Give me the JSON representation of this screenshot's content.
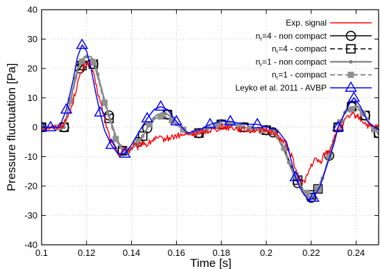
{
  "chart_data": {
    "type": "line",
    "xlabel": "Time [s]",
    "ylabel": "Pressure fluctuation [Pa]",
    "xlim": [
      0.1,
      0.25
    ],
    "ylim": [
      -40,
      40
    ],
    "xticks": [
      0.1,
      0.12,
      0.14,
      0.16,
      0.18,
      0.2,
      0.22,
      0.24
    ],
    "xtick_labels": [
      "0.1",
      "0.12",
      "0.14",
      "0.16",
      "0.18",
      "0.2",
      "0.22",
      "0.24"
    ],
    "yticks": [
      -40,
      -30,
      -20,
      -10,
      0,
      10,
      20,
      30,
      40
    ],
    "ytick_labels": [
      "-40",
      "-30",
      "-20",
      "-10",
      "0",
      "10",
      "20",
      "30",
      "40"
    ],
    "grid": true,
    "legend_position": "top-right",
    "series": [
      {
        "name": "Exp. signal",
        "label_main": "Exp. signal",
        "label_sub": "",
        "label_rest": "",
        "color": "#ff0000",
        "style": "solid",
        "marker": "none",
        "markers_at": [],
        "x": [
          0.1,
          0.106,
          0.11,
          0.113,
          0.116,
          0.119,
          0.121,
          0.123,
          0.125,
          0.127,
          0.129,
          0.131,
          0.133,
          0.135,
          0.137,
          0.139,
          0.141,
          0.143,
          0.145,
          0.147,
          0.15,
          0.155,
          0.16,
          0.165,
          0.17,
          0.175,
          0.18,
          0.185,
          0.19,
          0.195,
          0.2,
          0.204,
          0.208,
          0.212,
          0.214,
          0.216,
          0.218,
          0.22,
          0.222,
          0.224,
          0.226,
          0.228,
          0.23,
          0.232,
          0.234,
          0.236,
          0.238,
          0.24,
          0.243,
          0.246,
          0.25
        ],
        "y": [
          0,
          0,
          1,
          6,
          15,
          21,
          22,
          18,
          12,
          6,
          0,
          -5,
          -8,
          -9,
          -7,
          -8,
          -6,
          -7,
          -5,
          -6,
          -4,
          -4,
          -3,
          -2.5,
          -2,
          -1,
          0,
          0,
          -1,
          -1,
          -1,
          -2,
          -5,
          -11,
          -17,
          -19,
          -17,
          -13,
          -11,
          -12,
          -9,
          -8,
          -4,
          -1,
          1,
          3,
          4,
          4,
          2,
          0,
          0
        ]
      },
      {
        "name": "n_r=4 - non compact",
        "label_main": "n",
        "label_sub": "r",
        "label_rest": "=4 - non compact",
        "color": "#000000",
        "style": "solid",
        "marker": "circle",
        "markers_at": [
          0.1,
          0.11,
          0.117,
          0.123,
          0.13,
          0.136,
          0.143,
          0.147,
          0.156,
          0.17,
          0.18,
          0.19,
          0.2,
          0.203,
          0.214,
          0.22,
          0.228,
          0.232,
          0.238,
          0.244,
          0.25
        ],
        "x": [
          0.1,
          0.106,
          0.11,
          0.113,
          0.116,
          0.119,
          0.122,
          0.124,
          0.127,
          0.13,
          0.133,
          0.136,
          0.139,
          0.142,
          0.145,
          0.148,
          0.151,
          0.154,
          0.157,
          0.16,
          0.165,
          0.17,
          0.175,
          0.18,
          0.185,
          0.19,
          0.195,
          0.2,
          0.204,
          0.208,
          0.211,
          0.214,
          0.217,
          0.22,
          0.223,
          0.226,
          0.229,
          0.232,
          0.235,
          0.238,
          0.241,
          0.244,
          0.247,
          0.25
        ],
        "y": [
          0,
          0,
          0,
          10,
          19,
          22,
          23,
          20,
          12,
          4,
          -3,
          -8,
          -8,
          -6,
          -3,
          1,
          4,
          5,
          4,
          1,
          -2,
          -2,
          0,
          1,
          1,
          0,
          -1,
          -1,
          -2,
          -8,
          -14,
          -19,
          -23,
          -24,
          -22,
          -15,
          -7,
          0,
          5,
          7,
          7,
          4,
          0,
          -2
        ]
      },
      {
        "name": "n_r=4 - compact",
        "label_main": "n",
        "label_sub": "r",
        "label_rest": "=4 - compact",
        "color": "#000000",
        "style": "dashed",
        "marker": "square",
        "markers_at": [
          0.1,
          0.11,
          0.118,
          0.123,
          0.13,
          0.136,
          0.145,
          0.156,
          0.17,
          0.18,
          0.19,
          0.2,
          0.214,
          0.22,
          0.223,
          0.232,
          0.238,
          0.244,
          0.25
        ],
        "x": [
          0.1,
          0.106,
          0.11,
          0.113,
          0.116,
          0.119,
          0.122,
          0.124,
          0.127,
          0.13,
          0.133,
          0.136,
          0.139,
          0.142,
          0.145,
          0.148,
          0.151,
          0.154,
          0.157,
          0.16,
          0.165,
          0.17,
          0.175,
          0.18,
          0.185,
          0.19,
          0.195,
          0.2,
          0.204,
          0.208,
          0.211,
          0.214,
          0.217,
          0.22,
          0.223,
          0.226,
          0.229,
          0.232,
          0.235,
          0.238,
          0.241,
          0.244,
          0.247,
          0.25
        ],
        "y": [
          0,
          0,
          0,
          9,
          19,
          22,
          23,
          20,
          12,
          3,
          -3,
          -8,
          -8,
          -6,
          -3,
          1,
          4,
          5,
          4,
          1,
          -2,
          -2,
          0,
          1,
          1,
          0,
          -1,
          -1,
          -2,
          -7,
          -13,
          -18,
          -22,
          -23,
          -21,
          -15,
          -7,
          0,
          5,
          7,
          7,
          4,
          0,
          -2
        ]
      },
      {
        "name": "n_r=1 - non compact",
        "label_main": "n",
        "label_sub": "r",
        "label_rest": "=1 - non compact",
        "color": "#808080",
        "style": "solid",
        "marker": "dot",
        "markers_at": [
          0.1,
          0.105,
          0.11,
          0.115,
          0.12,
          0.125,
          0.13,
          0.135,
          0.14,
          0.145,
          0.15,
          0.155,
          0.16,
          0.165,
          0.17,
          0.175,
          0.18,
          0.185,
          0.19,
          0.195,
          0.2,
          0.205,
          0.21,
          0.215,
          0.22,
          0.225,
          0.23,
          0.235,
          0.24,
          0.245,
          0.25
        ],
        "x": [
          0.1,
          0.106,
          0.11,
          0.113,
          0.116,
          0.119,
          0.122,
          0.124,
          0.127,
          0.13,
          0.133,
          0.136,
          0.139,
          0.142,
          0.145,
          0.148,
          0.151,
          0.154,
          0.157,
          0.16,
          0.165,
          0.17,
          0.175,
          0.18,
          0.185,
          0.19,
          0.195,
          0.2,
          0.204,
          0.208,
          0.211,
          0.214,
          0.217,
          0.22,
          0.223,
          0.226,
          0.229,
          0.232,
          0.235,
          0.238,
          0.241,
          0.244,
          0.247,
          0.25
        ],
        "y": [
          0,
          0,
          0,
          10,
          20,
          24,
          24,
          21,
          12,
          4,
          -3,
          -8,
          -8,
          -6,
          -3,
          1,
          4,
          5,
          4,
          1,
          -2,
          -2,
          0,
          1,
          1,
          0,
          -1,
          -1,
          -2,
          -8,
          -14,
          -19,
          -23,
          -24,
          -22,
          -15,
          -7,
          0,
          5,
          7,
          7,
          4,
          0,
          -2
        ]
      },
      {
        "name": "n_r=1 - compact",
        "label_main": "n",
        "label_sub": "r",
        "label_rest": "=1 - compact",
        "color": "#909090",
        "style": "dashed",
        "marker": "filled-square",
        "markers_at": [
          0.1,
          0.108,
          0.113,
          0.118,
          0.123,
          0.128,
          0.133,
          0.138,
          0.143,
          0.148,
          0.153,
          0.158,
          0.163,
          0.168,
          0.173,
          0.178,
          0.183,
          0.188,
          0.193,
          0.198,
          0.203,
          0.208,
          0.213,
          0.218,
          0.223,
          0.228,
          0.233,
          0.238,
          0.243,
          0.248
        ],
        "x": [
          0.1,
          0.106,
          0.11,
          0.113,
          0.116,
          0.119,
          0.122,
          0.124,
          0.127,
          0.13,
          0.133,
          0.136,
          0.139,
          0.142,
          0.145,
          0.148,
          0.151,
          0.154,
          0.157,
          0.16,
          0.165,
          0.17,
          0.175,
          0.18,
          0.185,
          0.19,
          0.195,
          0.2,
          0.204,
          0.208,
          0.211,
          0.214,
          0.217,
          0.22,
          0.223,
          0.226,
          0.229,
          0.232,
          0.235,
          0.238,
          0.241,
          0.244,
          0.247,
          0.25
        ],
        "y": [
          0,
          0,
          0,
          9,
          19,
          24,
          24,
          20,
          11,
          3,
          -4,
          -8,
          -8,
          -6,
          -3,
          1,
          3,
          4,
          3,
          1,
          -2,
          -2,
          0,
          1,
          1,
          0,
          -1,
          -1,
          -2,
          -7,
          -13,
          -18,
          -22,
          -23,
          -21,
          -15,
          -7,
          0,
          5,
          6,
          6,
          4,
          0,
          -2
        ]
      },
      {
        "name": "Leyko et al. 2011 - AVBP",
        "label_main": "Leyko et al. 2011 - AVBP",
        "label_sub": "",
        "label_rest": "",
        "color": "#0000ff",
        "style": "solid",
        "marker": "triangle",
        "markers_at": [
          0.1,
          0.104,
          0.111,
          0.118,
          0.126,
          0.131,
          0.137,
          0.147,
          0.153,
          0.16,
          0.175,
          0.184,
          0.196,
          0.213,
          0.221,
          0.232,
          0.239
        ],
        "x": [
          0.1,
          0.104,
          0.108,
          0.111,
          0.114,
          0.116,
          0.118,
          0.12,
          0.122,
          0.124,
          0.126,
          0.128,
          0.131,
          0.134,
          0.137,
          0.14,
          0.143,
          0.147,
          0.15,
          0.153,
          0.156,
          0.16,
          0.165,
          0.17,
          0.175,
          0.18,
          0.184,
          0.19,
          0.196,
          0.2,
          0.205,
          0.209,
          0.213,
          0.216,
          0.219,
          0.221,
          0.224,
          0.227,
          0.23,
          0.232,
          0.235,
          0.237,
          0.239,
          0.242,
          0.245,
          0.25
        ],
        "y": [
          0,
          0,
          0,
          6,
          16,
          24,
          28,
          26,
          20,
          12,
          5,
          -1,
          -6,
          -9,
          -9,
          -6,
          -2,
          3,
          6,
          7,
          6,
          2,
          -2,
          -1,
          1,
          2,
          2,
          1,
          1,
          0,
          -1,
          -5,
          -17,
          -22,
          -25,
          -24,
          -20,
          -13,
          -6,
          0,
          5,
          8,
          10,
          7,
          2,
          -1
        ]
      }
    ]
  }
}
